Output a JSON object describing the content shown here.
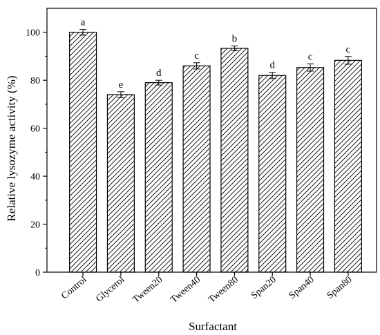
{
  "chart_data": {
    "type": "bar",
    "xlabel": "Surfactant",
    "ylabel": "Relative lysozyme activity (%)",
    "ylim": [
      0,
      110
    ],
    "yticks": [
      0,
      20,
      40,
      60,
      80,
      100
    ],
    "grid": false,
    "fill_pattern": "diagonal-hatch",
    "colors": {
      "bar_stroke": "#000000",
      "bar_fill": "#ffffff"
    },
    "categories": [
      "Control",
      "Glycerol",
      "Tween20",
      "Tween40",
      "Tween80",
      "Span20",
      "Span40",
      "Span80"
    ],
    "values": [
      100,
      74,
      79,
      86,
      93.3,
      82,
      85.3,
      88.3
    ],
    "errors": [
      1.2,
      1.2,
      1.0,
      1.3,
      1.0,
      1.3,
      1.5,
      1.6
    ],
    "significance": [
      "a",
      "e",
      "d",
      "c",
      "b",
      "d",
      "c",
      "c"
    ]
  }
}
